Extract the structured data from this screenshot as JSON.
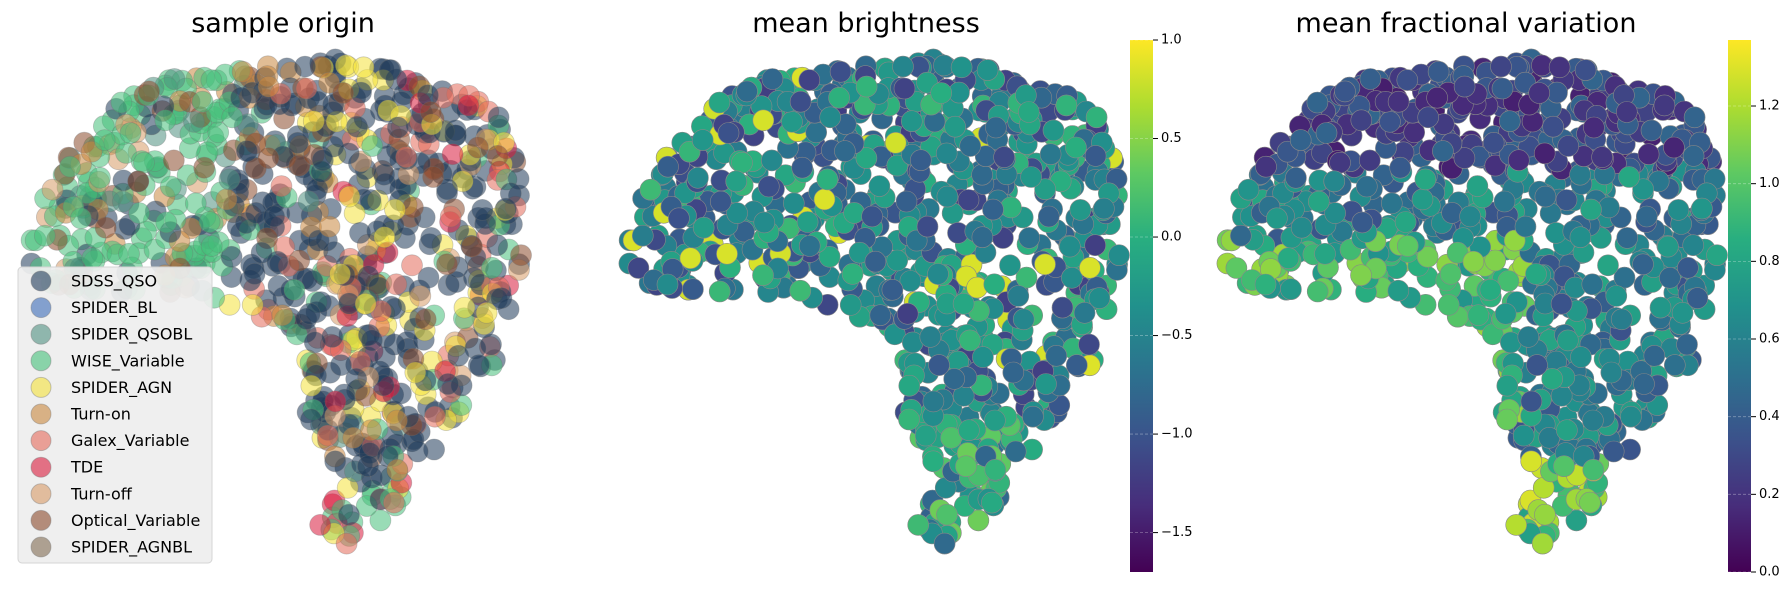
{
  "chart_data": [
    {
      "type": "scatter",
      "title": "sample origin",
      "legend": {
        "placement": "lower-left",
        "entries": [
          {
            "label": "SDSS_QSO",
            "color": "#1f3a5a"
          },
          {
            "label": "SPIDER_BL",
            "color": "#3a6ab8"
          },
          {
            "label": "SPIDER_QSOBL",
            "color": "#4f8f80"
          },
          {
            "label": "WISE_Variable",
            "color": "#45c07a"
          },
          {
            "label": "SPIDER_AGN",
            "color": "#f4e13a"
          },
          {
            "label": "Turn-on",
            "color": "#c8873e"
          },
          {
            "label": "Galex_Variable",
            "color": "#e4695a"
          },
          {
            "label": "TDE",
            "color": "#d81a3c"
          },
          {
            "label": "Turn-off",
            "color": "#d79a66"
          },
          {
            "label": "Optical_Variable",
            "color": "#8a4a2c"
          },
          {
            "label": "SPIDER_AGNBL",
            "color": "#806a52"
          }
        ]
      },
      "grid": false,
      "axes_visible": false
    },
    {
      "type": "scatter",
      "title": "mean brightness",
      "colormap": "viridis",
      "colorbar": {
        "range": [
          -1.7,
          1.0
        ],
        "ticks": [
          1.0,
          0.5,
          0.0,
          -0.5,
          -1.0,
          -1.5
        ],
        "tick_labels": [
          "1.0",
          "0.5",
          "0.0",
          "−0.5",
          "−1.0",
          "−1.5"
        ]
      },
      "grid": false,
      "axes_visible": false
    },
    {
      "type": "scatter",
      "title": "mean fractional variation",
      "colormap": "viridis",
      "colorbar": {
        "range": [
          0.0,
          1.37
        ],
        "ticks": [
          1.2,
          1.0,
          0.8,
          0.6,
          0.4,
          0.2,
          0.0
        ],
        "tick_labels": [
          "1.2",
          "1.0",
          "0.8",
          "0.6",
          "0.4",
          "0.2",
          "0.0"
        ]
      },
      "grid": false,
      "axes_visible": false
    }
  ]
}
